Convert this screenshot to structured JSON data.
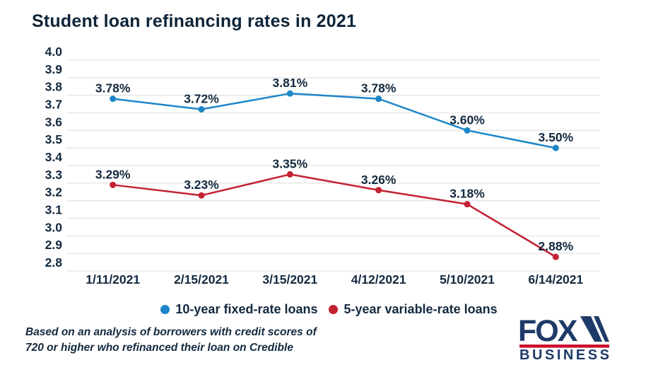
{
  "title": "Student loan refinancing rates in 2021",
  "chart_data": {
    "type": "line",
    "x": [
      "1/11/2021",
      "2/15/2021",
      "3/15/2021",
      "4/12/2021",
      "5/10/2021",
      "6/14/2021"
    ],
    "series": [
      {
        "name": "10-year fixed-rate loans",
        "color": "#1c86c8",
        "values": [
          3.78,
          3.72,
          3.81,
          3.78,
          3.6,
          3.5
        ],
        "point_labels": [
          "3.78%",
          "3.72%",
          "3.81%",
          "3.78%",
          "3.60%",
          "3.50%"
        ]
      },
      {
        "name": "5-year variable-rate loans",
        "color": "#c32133",
        "values": [
          3.29,
          3.23,
          3.35,
          3.26,
          3.18,
          2.88
        ],
        "point_labels": [
          "3.29%",
          "3.23%",
          "3.35%",
          "3.26%",
          "3.18%",
          "2.88%"
        ]
      }
    ],
    "title": "Student loan refinancing rates in 2021",
    "xlabel": "",
    "ylabel": "",
    "ylim": [
      2.8,
      4.0
    ],
    "ytick_step": 0.1,
    "ytick_labels": [
      "4.0",
      "3.9",
      "3.8",
      "3.7",
      "3.6",
      "3.5",
      "3.4",
      "3.3",
      "3.2",
      "3.1",
      "3.0",
      "2.9",
      "2.8"
    ],
    "grid": "horizontal",
    "legend_position": "bottom"
  },
  "footnote": {
    "line1": "Based on an analysis of borrowers with credit scores of",
    "line2": "720 or higher who refinanced their loan on Credible"
  },
  "logo": {
    "word1": "FOX",
    "word2": "BUSINESS"
  },
  "colors": {
    "text": "#13293f",
    "title": "#0e2438",
    "grid": "#e4e4e4",
    "blue": "#1c86c8",
    "red": "#c32133",
    "logo_navy": "#1e3a68",
    "logo_red": "#ce0e2d"
  }
}
